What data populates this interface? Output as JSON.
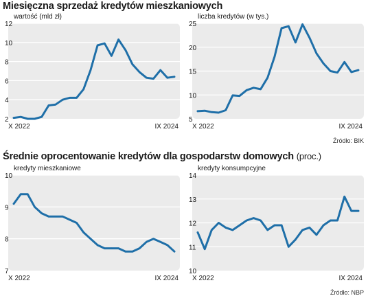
{
  "section1": {
    "title": "Miesięczna sprzedaż kredytów mieszkaniowych",
    "source": "Źródło: BIK"
  },
  "section2": {
    "title": "Średnie oprocentowanie kredytów dla gospodarstw domowych",
    "title_suffix": "(proc.)",
    "source": "Źródło: NBP"
  },
  "colors": {
    "line": "#1f6fa8",
    "panel": "#ebebeb",
    "grid": "#ffffff",
    "text": "#1a1a1a"
  },
  "chart_data": [
    {
      "type": "line",
      "label": "wartość (mld zł)",
      "x_start_label": "X 2022",
      "x_end_label": "IX 2024",
      "ylim": [
        2,
        12
      ],
      "yticks": [
        2,
        4,
        6,
        8,
        10,
        12
      ],
      "values": [
        2.1,
        2.2,
        2.0,
        2.0,
        2.2,
        3.4,
        3.5,
        4.0,
        4.2,
        4.2,
        5.1,
        7.1,
        9.7,
        9.9,
        8.6,
        10.3,
        9.2,
        7.7,
        6.9,
        6.3,
        6.2,
        7.1,
        6.3,
        6.4
      ]
    },
    {
      "type": "line",
      "label": "liczba kredytów (w tys.)",
      "x_start_label": "X 2022",
      "x_end_label": "IX 2024",
      "ylim": [
        5,
        25
      ],
      "yticks": [
        5,
        10,
        15,
        20,
        25
      ],
      "values": [
        6.6,
        6.7,
        6.4,
        6.3,
        6.8,
        9.9,
        9.8,
        11.0,
        11.5,
        11.2,
        13.6,
        18.0,
        24.0,
        24.4,
        21.0,
        24.8,
        22.0,
        18.7,
        16.6,
        15.0,
        14.7,
        16.9,
        14.8,
        15.2
      ]
    },
    {
      "type": "line",
      "label": "kredyty mieszkaniowe",
      "x_start_label": "X 2022",
      "x_end_label": "IX 2024",
      "ylim": [
        7,
        10
      ],
      "yticks": [
        7,
        8,
        9,
        10
      ],
      "values": [
        9.1,
        9.4,
        9.4,
        9.0,
        8.8,
        8.7,
        8.7,
        8.7,
        8.6,
        8.5,
        8.2,
        8.0,
        7.8,
        7.7,
        7.7,
        7.7,
        7.6,
        7.6,
        7.7,
        7.9,
        8.0,
        7.9,
        7.8,
        7.6
      ]
    },
    {
      "type": "line",
      "label": "kredyty konsumpcyjne",
      "x_start_label": "X 2022",
      "x_end_label": "IX 2024",
      "ylim": [
        10,
        14
      ],
      "yticks": [
        10,
        11,
        12,
        13,
        14
      ],
      "values": [
        11.6,
        10.9,
        11.7,
        12.0,
        11.8,
        11.7,
        11.9,
        12.1,
        12.2,
        12.1,
        11.7,
        11.9,
        11.9,
        11.0,
        11.3,
        11.7,
        11.8,
        11.5,
        11.9,
        12.1,
        12.1,
        13.1,
        12.5,
        12.5
      ]
    }
  ]
}
